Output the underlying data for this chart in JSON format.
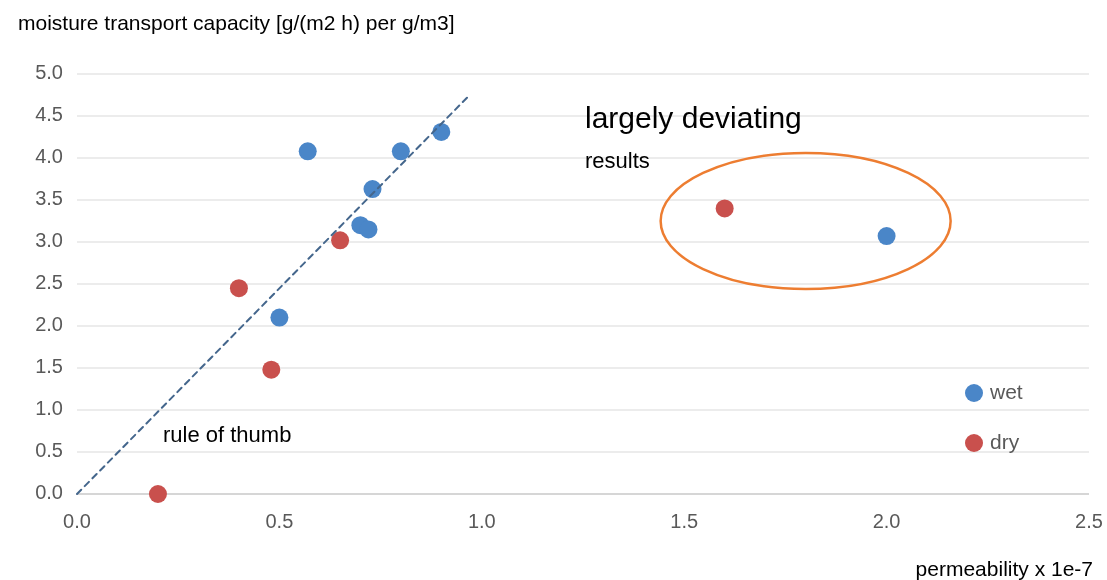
{
  "chart_data": {
    "type": "scatter",
    "xlabel": "permeability x 1e-7",
    "ylabel": "moisture transport capacity [g/(m2 h) per g/m3]",
    "xlim": [
      0,
      2.5
    ],
    "xticks": [
      {
        "value": 0,
        "label": "0.0"
      },
      {
        "value": 0.5,
        "label": "0.5"
      },
      {
        "value": 1,
        "label": "1.0"
      },
      {
        "value": 1.5,
        "label": "1.5"
      },
      {
        "value": 2,
        "label": "2.0"
      },
      {
        "value": 2.5,
        "label": "2.5"
      }
    ],
    "ylim": [
      0,
      5
    ],
    "yticks": [
      {
        "value": 0,
        "label": "0.0"
      },
      {
        "value": 0.5,
        "label": "0.5"
      },
      {
        "value": 1,
        "label": "1.0"
      },
      {
        "value": 1.5,
        "label": "1.5"
      },
      {
        "value": 2,
        "label": "2.0"
      },
      {
        "value": 2.5,
        "label": "2.5"
      },
      {
        "value": 3,
        "label": "3.0"
      },
      {
        "value": 3.5,
        "label": "3.5"
      },
      {
        "value": 4,
        "label": "4.0"
      },
      {
        "value": 4.5,
        "label": "4.5"
      },
      {
        "value": 5,
        "label": "5.0"
      }
    ],
    "grid": "y",
    "legend": "bottom right",
    "series": [
      {
        "name": "wet",
        "color": "#4a86c8",
        "marker": "circle",
        "x": [
          0.57,
          0.8,
          0.9,
          0.73,
          0.7,
          0.72,
          0.5,
          2.0
        ],
        "values": [
          4.08,
          4.08,
          4.31,
          3.63,
          3.2,
          3.15,
          2.1,
          3.07
        ]
      },
      {
        "name": "dry",
        "color": "#c9504d",
        "marker": "circle",
        "x": [
          0.2,
          0.4,
          0.48,
          0.65,
          1.6
        ],
        "values": [
          0,
          2.45,
          1.48,
          3.02,
          3.4
        ]
      },
      {
        "type": "line",
        "color": "#44668c",
        "line_style": "dashed",
        "marker": "none",
        "x": [
          0,
          0.97
        ],
        "values": [
          0,
          4.75
        ]
      }
    ],
    "annotations": [
      "largely deviating",
      "results",
      "rule of thumb"
    ]
  }
}
